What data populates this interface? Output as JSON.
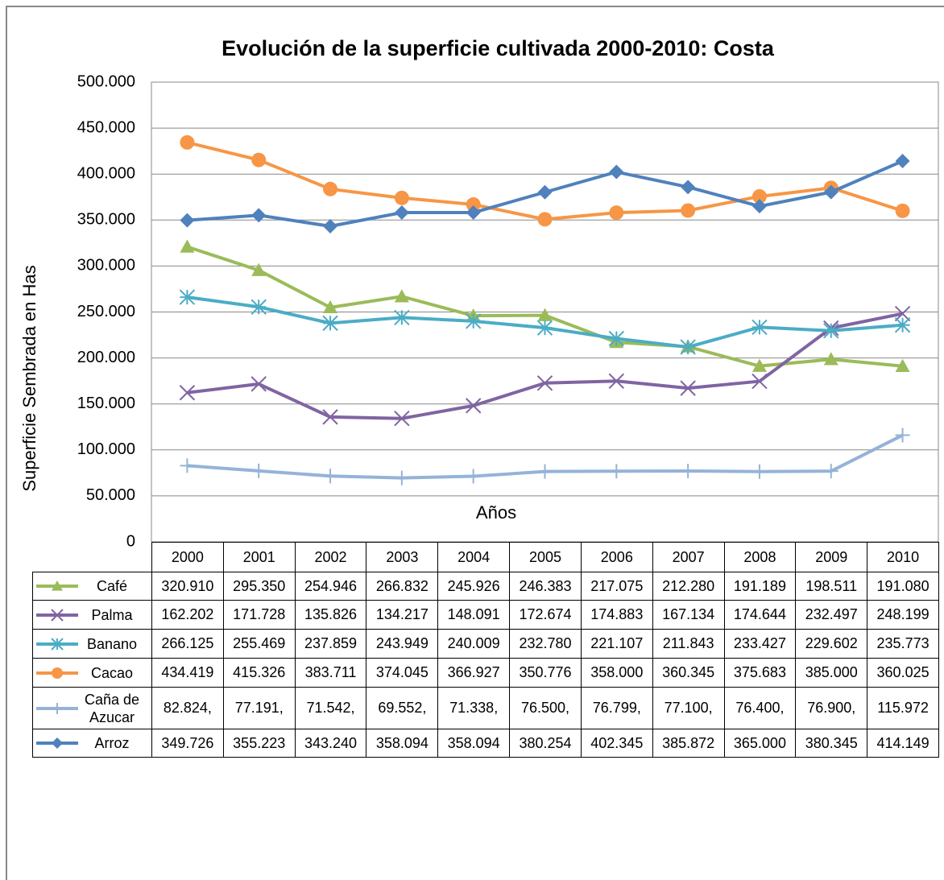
{
  "chart_data": {
    "type": "line",
    "title": "Evolución de la superficie cultivada 2000-2010: Costa",
    "y_label": "Superficie  Sembrada  en Has",
    "x_label": "Años",
    "categories": [
      "2000",
      "2001",
      "2002",
      "2003",
      "2004",
      "2005",
      "2006",
      "2007",
      "2008",
      "2009",
      "2010"
    ],
    "ylim": [
      0,
      500000
    ],
    "yticks": [
      0,
      {
        "value": 50000,
        "label": "50.000"
      },
      {
        "value": 100000,
        "label": "100.000"
      },
      {
        "value": 150000,
        "label": "150.000"
      },
      {
        "value": 200000,
        "label": "200.000"
      },
      {
        "value": 250000,
        "label": "250.000"
      },
      {
        "value": 300000,
        "label": "300.000"
      },
      {
        "value": 350000,
        "label": "350.000"
      },
      {
        "value": 400000,
        "label": "400.000"
      },
      {
        "value": 450000,
        "label": "450.000"
      },
      {
        "value": 500000,
        "label": "500.000"
      }
    ],
    "grid": true,
    "series": [
      {
        "name": "Café",
        "color": "#9bbb59",
        "marker": "triangle",
        "values": [
          320910,
          295350,
          254946,
          266832,
          245926,
          246383,
          217075,
          212280,
          191189,
          198511,
          191080
        ],
        "value_labels": [
          "320.910",
          "295.350",
          "254.946",
          "266.832",
          "245.926",
          "246.383",
          "217.075",
          "212.280",
          "191.189",
          "198.511",
          "191.080"
        ]
      },
      {
        "name": "Palma",
        "color": "#8064a2",
        "marker": "x",
        "values": [
          162202,
          171728,
          135826,
          134217,
          148091,
          172674,
          174883,
          167134,
          174644,
          232497,
          248199
        ],
        "value_labels": [
          "162.202",
          "171.728",
          "135.826",
          "134.217",
          "148.091",
          "172.674",
          "174.883",
          "167.134",
          "174.644",
          "232.497",
          "248.199"
        ]
      },
      {
        "name": "Banano",
        "color": "#4bacc6",
        "marker": "star",
        "values": [
          266125,
          255469,
          237859,
          243949,
          240009,
          232780,
          221107,
          211843,
          233427,
          229602,
          235773
        ],
        "value_labels": [
          "266.125",
          "255.469",
          "237.859",
          "243.949",
          "240.009",
          "232.780",
          "221.107",
          "211.843",
          "233.427",
          "229.602",
          "235.773"
        ]
      },
      {
        "name": "Cacao",
        "color": "#f79646",
        "marker": "circle",
        "values": [
          434419,
          415326,
          383711,
          374045,
          366927,
          350776,
          358000,
          360345,
          375683,
          385000,
          360025
        ],
        "value_labels": [
          "434.419",
          "415.326",
          "383.711",
          "374.045",
          "366.927",
          "350.776",
          "358.000",
          "360.345",
          "375.683",
          "385.000",
          "360.025"
        ]
      },
      {
        "name": "Caña de Azucar",
        "color": "#95b3d7",
        "marker": "plus",
        "values": [
          82824,
          77191,
          71542,
          69552,
          71338,
          76500,
          76799,
          77100,
          76400,
          76900,
          115972
        ],
        "value_labels": [
          "82.824,",
          "77.191,",
          "71.542,",
          "69.552,",
          "71.338,",
          "76.500,",
          "76.799,",
          "77.100,",
          "76.400,",
          "76.900,",
          "115.972"
        ]
      },
      {
        "name": "Arroz",
        "color": "#4f81bd",
        "marker": "diamond",
        "values": [
          349726,
          355223,
          343240,
          358094,
          358094,
          380254,
          402345,
          385872,
          365000,
          380345,
          414149
        ],
        "value_labels": [
          "349.726",
          "355.223",
          "343.240",
          "358.094",
          "358.094",
          "380.254",
          "402.345",
          "385.872",
          "365.000",
          "380.345",
          "414.149"
        ]
      }
    ]
  }
}
